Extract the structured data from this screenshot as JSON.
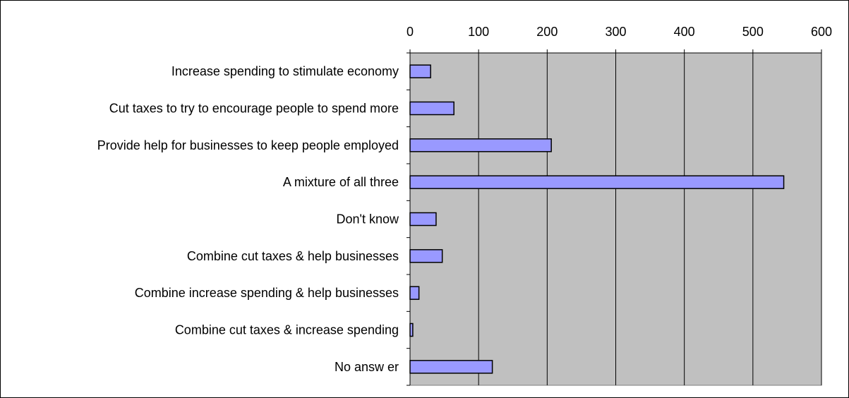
{
  "chart_data": {
    "type": "bar",
    "orientation": "horizontal",
    "title": "",
    "xlabel": "",
    "ylabel": "",
    "categories": [
      "Increase spending to stimulate economy",
      "Cut taxes to try to encourage people to spend more",
      "Provide help for businesses to keep people employed",
      "A mixture of all three",
      "Don't know",
      "Combine cut taxes & help businesses",
      "Combine increase spending & help businesses",
      "Combine cut taxes & increase spending",
      "No answ er"
    ],
    "values": [
      30,
      64,
      206,
      545,
      38,
      47,
      13,
      4,
      120
    ],
    "xlim": [
      0,
      600
    ],
    "xticks": [
      0,
      100,
      200,
      300,
      400,
      500,
      600
    ],
    "xtick_labels": [
      "0",
      "100",
      "200",
      "300",
      "400",
      "500",
      "600"
    ],
    "x_axis_position": "top",
    "grid": true,
    "legend": "none",
    "colors": {
      "bar_fill": "#9999FF",
      "bar_stroke": "#000000",
      "plot_background": "#C0C0C0",
      "gridline": "#000000"
    }
  }
}
